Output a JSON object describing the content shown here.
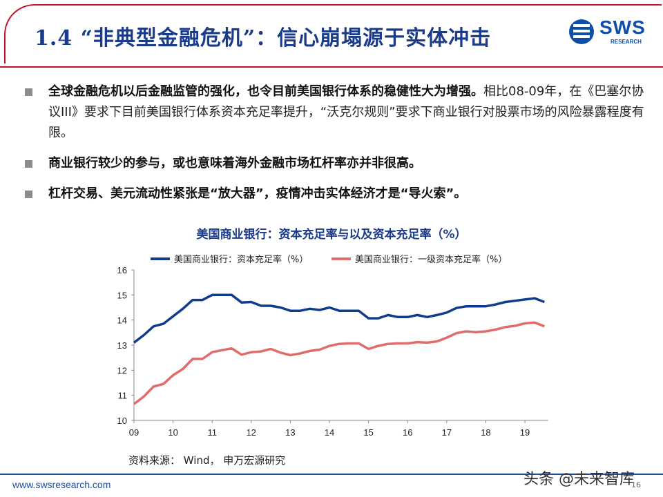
{
  "slide": {
    "title": "1.4 “非典型金融危机”：信心崩塌源于实体冲击",
    "logo_text": "SWS",
    "logo_sub": "RESEARCH",
    "bullets": [
      {
        "bold": "全球金融危机以后金融监管的强化，也令目前美国银行体系的稳健性大为增强。",
        "text": "相比08-09年，在《巴塞尔协议III》要求下目前美国银行体系资本充足率提升，“沃克尔规则”要求下商业银行对股票市场的风险暴露程度有限。"
      },
      {
        "bold": "商业银行较少的参与，或也意味着海外金融市场杠杆率亦并非很高。",
        "text": ""
      },
      {
        "bold": "杠杆交易、美元流动性紧张是“放大器”，疫情冲击实体经济才是“导火索”。",
        "text": ""
      }
    ],
    "source": "资料来源：  Wind， 申万宏源研究",
    "footer_url": "www.swsresearch.com",
    "page_number": "16",
    "watermark": "头条 @未来智库"
  },
  "chart_data": {
    "type": "line",
    "title": "美国商业银行：资本充足率与以及资本充足率（%）",
    "ylim": [
      10,
      16
    ],
    "yticks": [
      10,
      11,
      12,
      13,
      14,
      15,
      16
    ],
    "xticks": [
      "09",
      "10",
      "11",
      "12",
      "13",
      "14",
      "15",
      "16",
      "17",
      "18",
      "19"
    ],
    "xlim": [
      2009.0,
      2019.6
    ],
    "x": [
      2009.0,
      2009.25,
      2009.5,
      2009.75,
      2010.0,
      2010.25,
      2010.5,
      2010.75,
      2011.0,
      2011.25,
      2011.5,
      2011.75,
      2012.0,
      2012.25,
      2012.5,
      2012.75,
      2013.0,
      2013.25,
      2013.5,
      2013.75,
      2014.0,
      2014.25,
      2014.5,
      2014.75,
      2015.0,
      2015.25,
      2015.5,
      2015.75,
      2016.0,
      2016.25,
      2016.5,
      2016.75,
      2017.0,
      2017.25,
      2017.5,
      2017.75,
      2018.0,
      2018.25,
      2018.5,
      2018.75,
      2019.0,
      2019.25,
      2019.5
    ],
    "series": [
      {
        "name": "美国商业银行：资本充足率（%）",
        "color": "#0f3c8c",
        "values": [
          13.1,
          13.4,
          13.75,
          13.85,
          14.15,
          14.45,
          14.8,
          14.8,
          15.0,
          15.0,
          15.0,
          14.7,
          14.72,
          14.57,
          14.57,
          14.5,
          14.37,
          14.37,
          14.45,
          14.4,
          14.5,
          14.37,
          14.37,
          14.37,
          14.07,
          14.07,
          14.2,
          14.12,
          14.12,
          14.2,
          14.12,
          14.2,
          14.3,
          14.48,
          14.55,
          14.55,
          14.55,
          14.62,
          14.72,
          14.77,
          14.82,
          14.87,
          14.72
        ]
      },
      {
        "name": "美国商业银行：一级资本充足率（%）",
        "color": "#e06c6c",
        "values": [
          10.65,
          10.95,
          11.35,
          11.45,
          11.8,
          12.05,
          12.45,
          12.45,
          12.72,
          12.8,
          12.87,
          12.62,
          12.72,
          12.75,
          12.85,
          12.7,
          12.6,
          12.67,
          12.77,
          12.82,
          12.97,
          13.05,
          13.07,
          13.07,
          12.85,
          12.97,
          13.05,
          13.07,
          13.07,
          13.12,
          13.1,
          13.15,
          13.3,
          13.48,
          13.55,
          13.52,
          13.55,
          13.62,
          13.72,
          13.77,
          13.87,
          13.9,
          13.75
        ]
      }
    ]
  }
}
